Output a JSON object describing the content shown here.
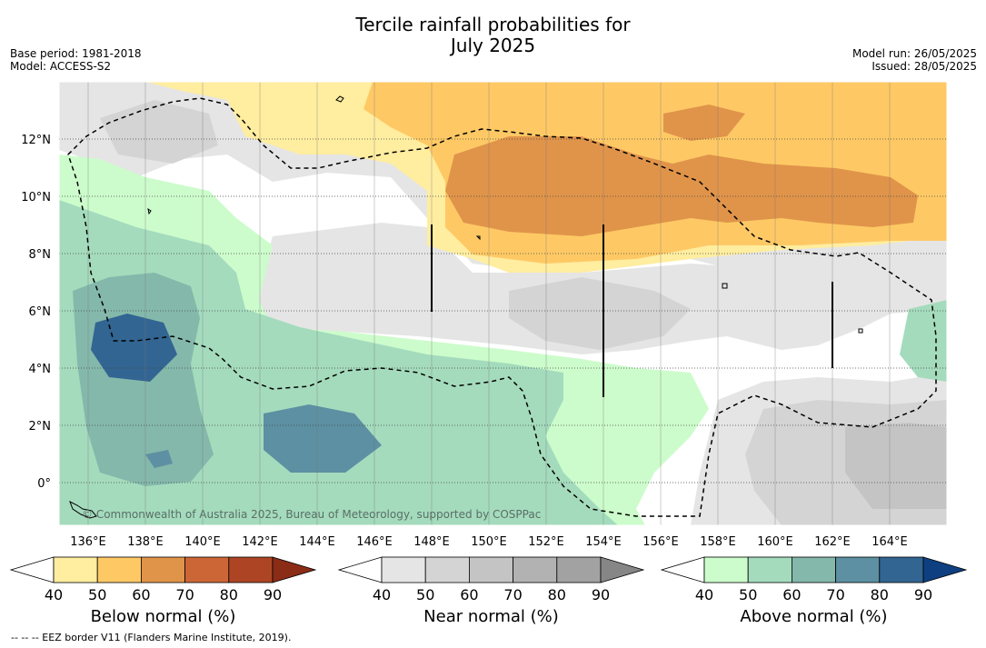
{
  "title": {
    "line1": "Tercile rainfall probabilities for",
    "line2": "July 2025"
  },
  "meta_left": {
    "base_period": "Base period: 1981-2018",
    "model": "Model: ACCESS-S2"
  },
  "meta_right": {
    "model_run": "Model run: 26/05/2025",
    "issued": "Issued: 28/05/2025"
  },
  "map": {
    "x_ticks": [
      "136°E",
      "138°E",
      "140°E",
      "142°E",
      "144°E",
      "146°E",
      "148°E",
      "150°E",
      "152°E",
      "154°E",
      "156°E",
      "158°E",
      "160°E",
      "162°E",
      "164°E"
    ],
    "y_ticks": [
      "12°N",
      "10°N",
      "8°N",
      "6°N",
      "4°N",
      "2°N",
      "0°"
    ],
    "copyright": "© Commonwealth of Australia 2025, Bureau of Meteorology, supported by COSPPac",
    "legend_line": "--  --  -- EEZ border V11 (Flanders Marine Institute, 2019)."
  },
  "colorbars": [
    {
      "label": "Below normal (%)",
      "ticks": [
        "40",
        "50",
        "60",
        "70",
        "80",
        "90"
      ],
      "colors": [
        "#ffffff",
        "#ffeda0",
        "#fec965",
        "#e0944a",
        "#cd6636",
        "#ad4525",
        "#8b2c17"
      ]
    },
    {
      "label": "Near normal (%)",
      "ticks": [
        "40",
        "50",
        "60",
        "70",
        "80",
        "90"
      ],
      "colors": [
        "#ffffff",
        "#e5e5e5",
        "#d4d4d4",
        "#c4c4c4",
        "#b2b2b2",
        "#a2a2a2",
        "#868686"
      ]
    },
    {
      "label": "Above normal (%)",
      "ticks": [
        "40",
        "50",
        "60",
        "70",
        "80",
        "90"
      ],
      "colors": [
        "#ffffff",
        "#ccfccb",
        "#a4dbbd",
        "#84b8ab",
        "#5c90a2",
        "#326592",
        "#0e3f80"
      ]
    }
  ]
}
